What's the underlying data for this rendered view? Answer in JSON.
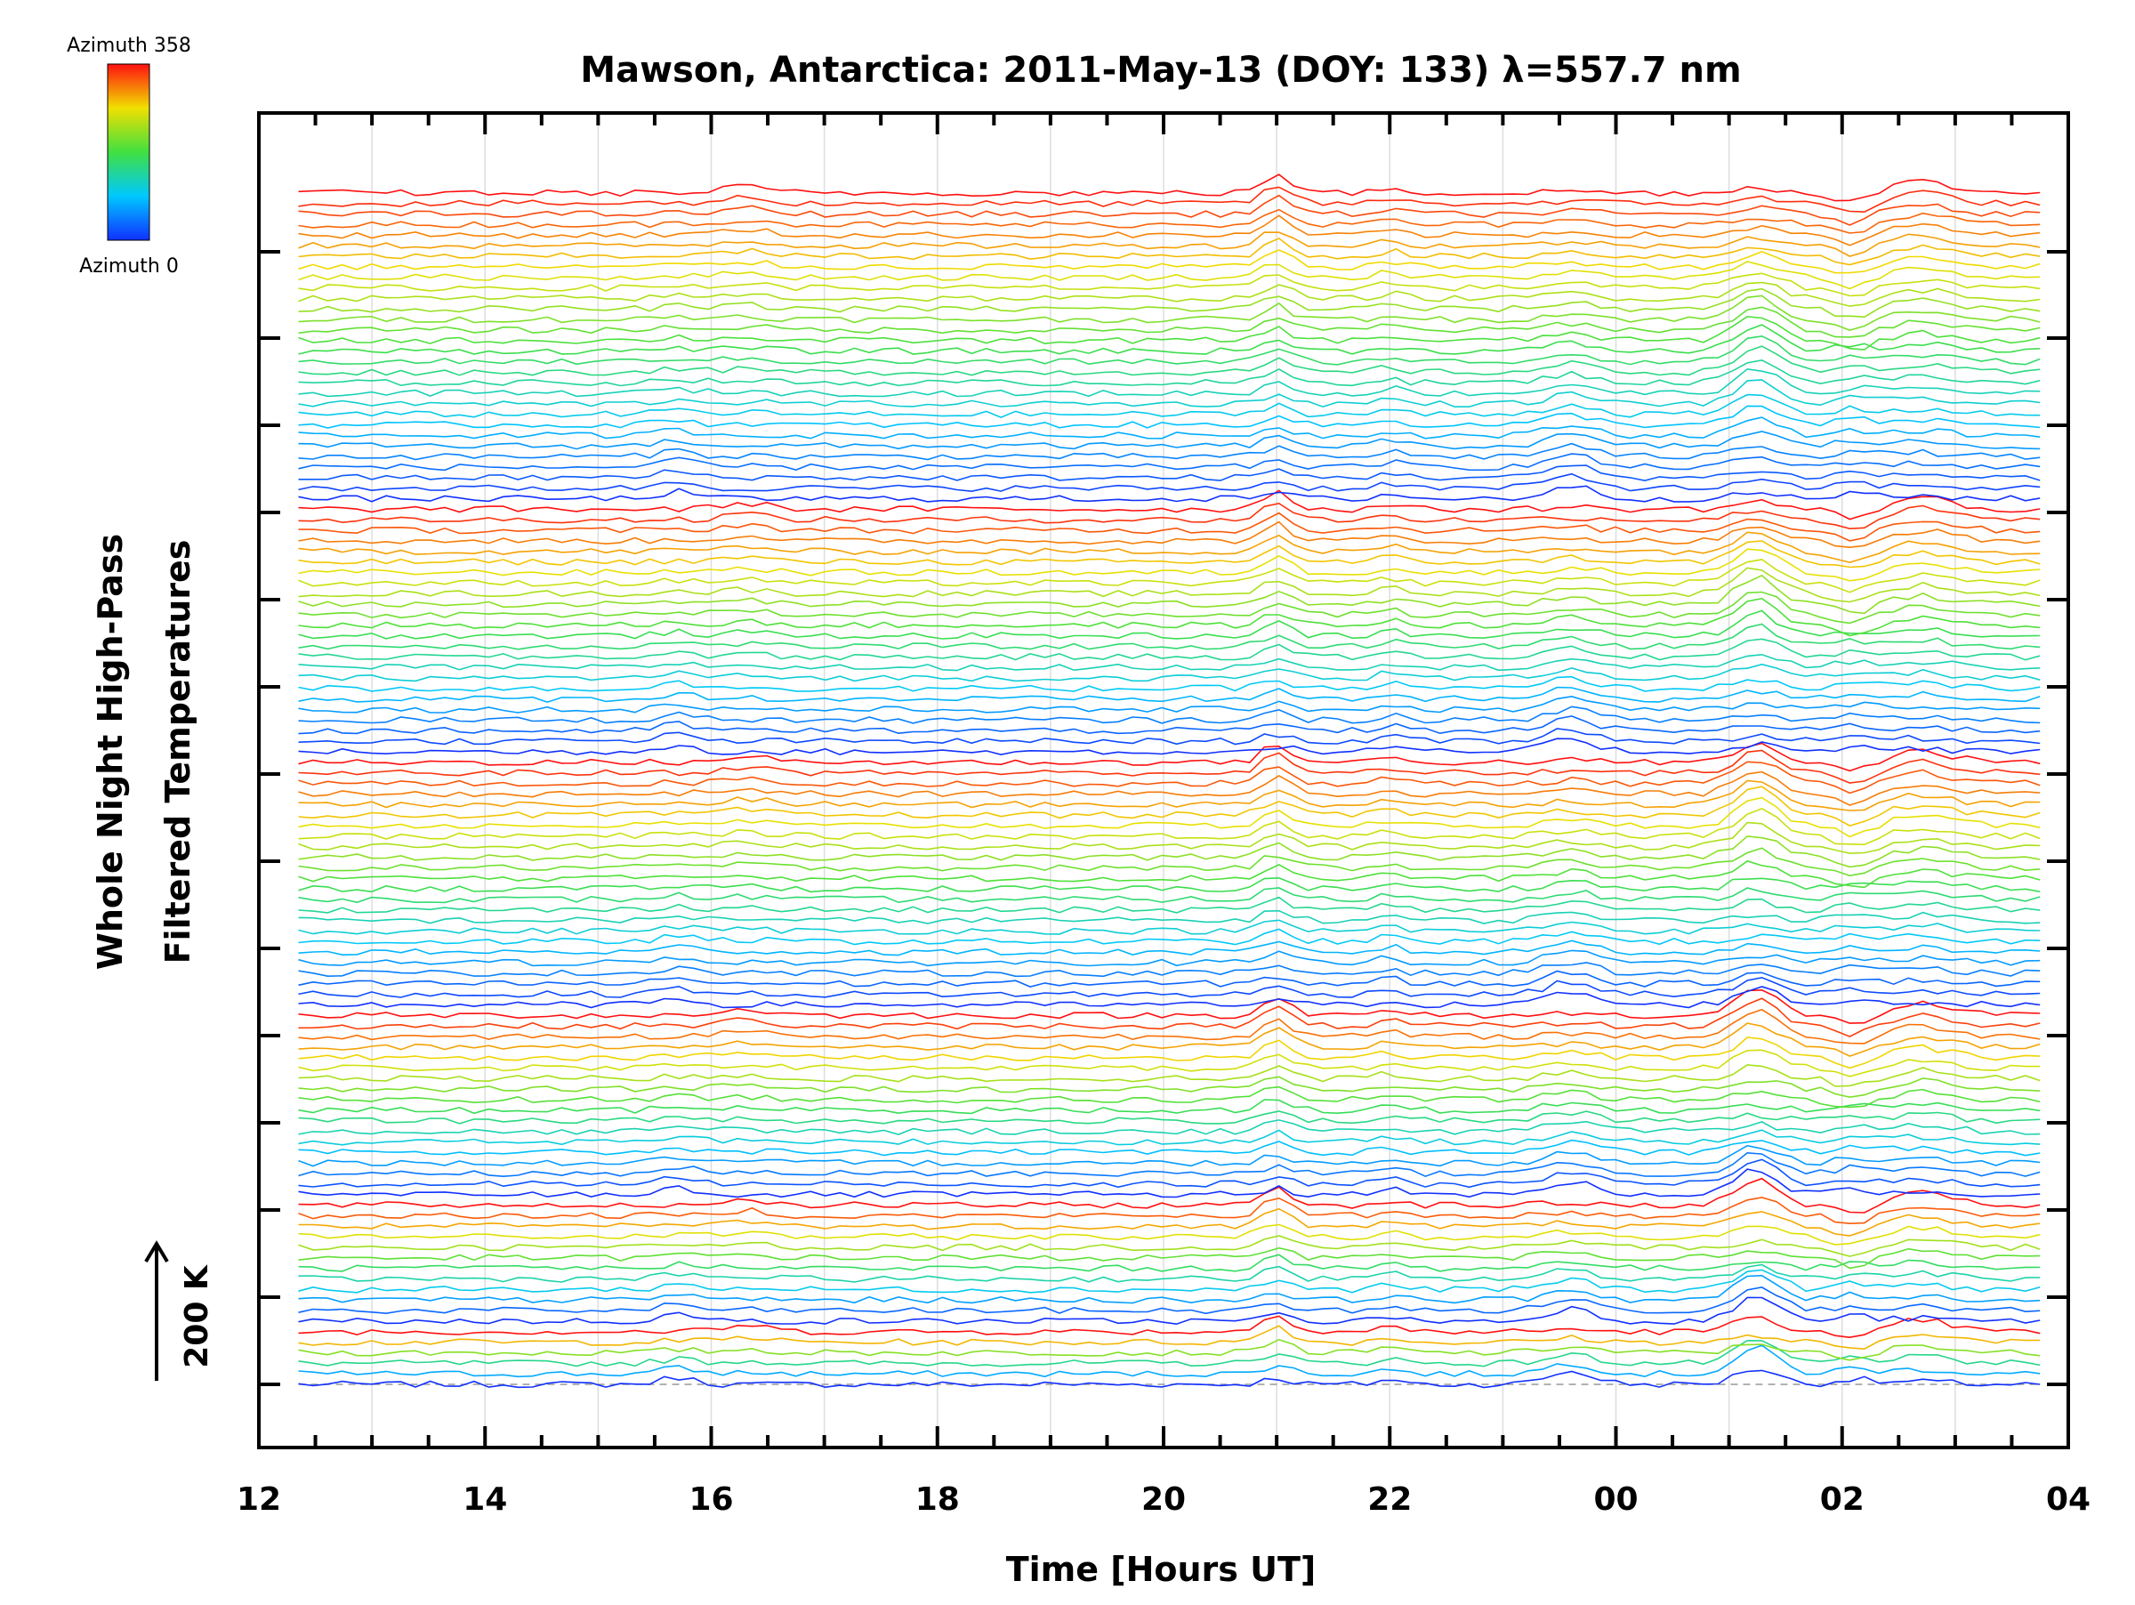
{
  "chart_data": {
    "type": "line",
    "title": "Mawson, Antarctica: 2011-May-13 (DOY: 133) λ=557.7 nm",
    "xlabel": "Time [Hours UT]",
    "ylabel": [
      "Whole Night High-Pass",
      "Filtered Temperatures"
    ],
    "scale_bar": {
      "label": "200 K",
      "value_k": 200
    },
    "colorbar": {
      "top_label": "Azimuth  358",
      "bottom_label": "Azimuth  0",
      "min": 0,
      "max": 358
    },
    "x_ticks": [
      "12",
      "14",
      "16",
      "18",
      "20",
      "22",
      "00",
      "02",
      "04"
    ],
    "xlim_hours_ut": [
      12,
      28
    ],
    "data_range_hours_ut": [
      12.35,
      27.75
    ],
    "series_count": 115,
    "rings": 6,
    "traces_per_ring": [
      6,
      12,
      18,
      24,
      24,
      30
    ],
    "y_axis_tick_labels": "none",
    "grid": "vertical lines at each hour",
    "dashed_baseline": true,
    "color_mapping": "azimuth 0 (blue) to 358 (red)",
    "common_features_hours_ut": [
      15.7,
      16.3,
      21.0,
      22.0,
      23.6,
      25.25,
      26.1,
      26.7
    ]
  }
}
